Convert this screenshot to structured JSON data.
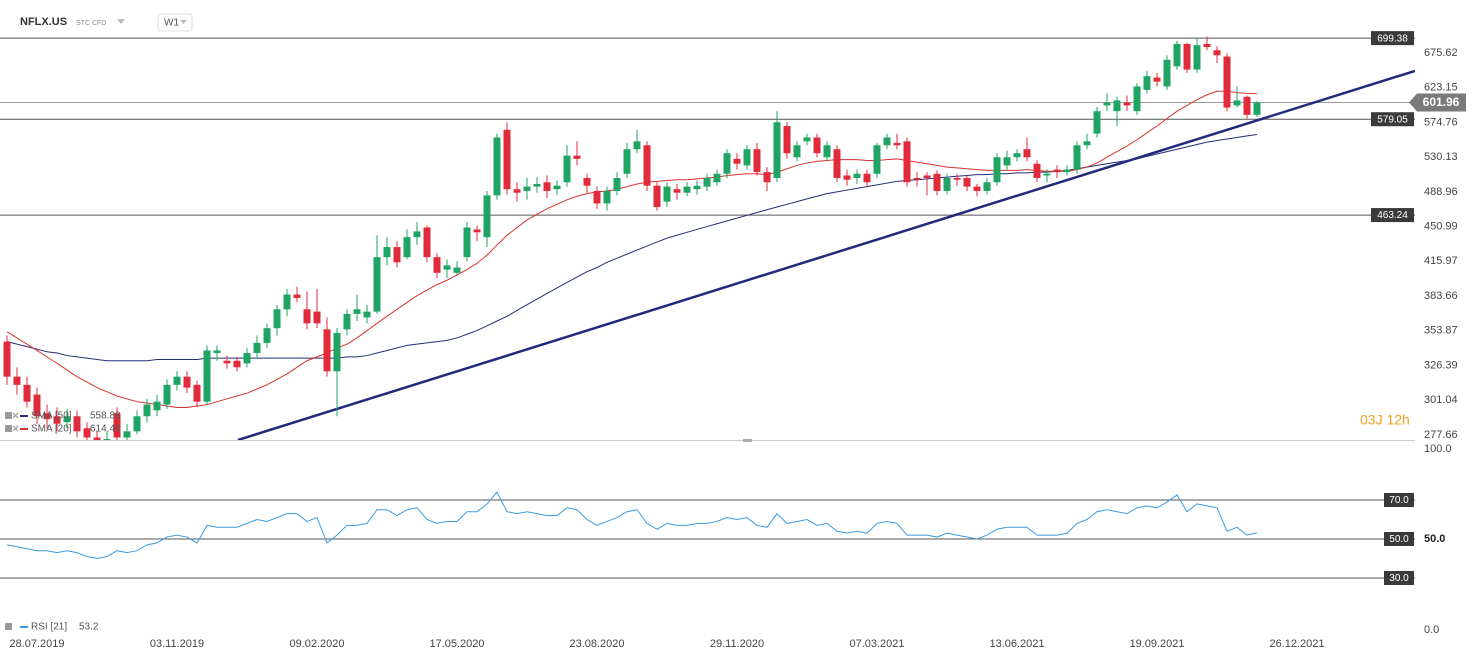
{
  "header": {
    "symbol": "NFLX.US",
    "instrument": "STC CFD",
    "interval": "W1"
  },
  "countdown": "03J 12h",
  "chart_data": [
    {
      "type": "candlestick",
      "log_scale": true,
      "up_color": "#1fa463",
      "down_color": "#e12b3b",
      "ylim": [
        274.4,
        764.3
      ],
      "yticks": [
        675.62,
        623.15,
        574.76,
        530.13,
        488.96,
        450.99,
        415.97,
        383.66,
        353.87,
        326.39,
        301.04,
        277.66
      ],
      "levels": [
        699.38,
        579.05,
        463.24
      ],
      "open": [
        345,
        318,
        312,
        305,
        292,
        290,
        286,
        290,
        282,
        276,
        272,
        292,
        276,
        280,
        290,
        294,
        298,
        312,
        318,
        312,
        300,
        336,
        330,
        330,
        328,
        336,
        344,
        356,
        372,
        385,
        372,
        370,
        355,
        322,
        355,
        368,
        365,
        370,
        420,
        430,
        420,
        440,
        450,
        420,
        408,
        405,
        420,
        448,
        440,
        485,
        565,
        492,
        490,
        495,
        500,
        492,
        500,
        532,
        505,
        490,
        476,
        490,
        510,
        540,
        545,
        496,
        478,
        492,
        488,
        492,
        495,
        500,
        510,
        528,
        520,
        540,
        512,
        505,
        570,
        530,
        550,
        555,
        530,
        540,
        508,
        505,
        510,
        510,
        545,
        548,
        550,
        505,
        508,
        510,
        490,
        505,
        505,
        495,
        490,
        500,
        520,
        530,
        540,
        522,
        508,
        515,
        512,
        515,
        545,
        560,
        598,
        590,
        602,
        590,
        620,
        638,
        625,
        655,
        690,
        650,
        690,
        680,
        670,
        598,
        610,
        585
      ],
      "high": [
        350,
        325,
        318,
        310,
        298,
        296,
        295,
        294,
        286,
        280,
        280,
        296,
        285,
        294,
        302,
        305,
        316,
        322,
        322,
        315,
        342,
        342,
        334,
        333,
        340,
        350,
        360,
        376,
        390,
        392,
        388,
        390,
        365,
        356,
        372,
        385,
        376,
        442,
        440,
        436,
        448,
        456,
        452,
        424,
        418,
        416,
        456,
        452,
        490,
        560,
        575,
        500,
        505,
        506,
        508,
        502,
        545,
        550,
        510,
        495,
        495,
        512,
        548,
        565,
        550,
        500,
        500,
        498,
        500,
        502,
        510,
        515,
        540,
        535,
        545,
        548,
        518,
        590,
        575,
        550,
        560,
        560,
        550,
        545,
        515,
        515,
        515,
        548,
        560,
        560,
        555,
        512,
        512,
        514,
        510,
        510,
        508,
        498,
        505,
        535,
        538,
        540,
        555,
        526,
        515,
        520,
        520,
        550,
        560,
        596,
        615,
        610,
        612,
        630,
        648,
        645,
        672,
        695,
        692,
        700,
        702,
        686,
        675,
        625,
        612,
        604
      ],
      "low": [
        312,
        305,
        296,
        285,
        282,
        280,
        282,
        276,
        270,
        265,
        268,
        272,
        272,
        278,
        286,
        290,
        295,
        308,
        306,
        296,
        298,
        330,
        324,
        322,
        325,
        332,
        340,
        350,
        366,
        378,
        355,
        356,
        318,
        290,
        350,
        362,
        360,
        368,
        412,
        410,
        418,
        432,
        415,
        400,
        400,
        402,
        416,
        436,
        430,
        480,
        486,
        478,
        480,
        488,
        482,
        485,
        495,
        520,
        488,
        470,
        468,
        485,
        505,
        535,
        490,
        468,
        472,
        480,
        484,
        486,
        490,
        496,
        505,
        515,
        515,
        508,
        490,
        500,
        528,
        525,
        545,
        530,
        525,
        500,
        496,
        498,
        495,
        505,
        540,
        540,
        495,
        495,
        485,
        485,
        486,
        496,
        490,
        484,
        486,
        496,
        515,
        525,
        525,
        500,
        500,
        505,
        508,
        510,
        540,
        555,
        590,
        570,
        590,
        585,
        615,
        625,
        620,
        650,
        645,
        645,
        680,
        660,
        590,
        595,
        580,
        582
      ],
      "close": [
        318,
        312,
        300,
        290,
        288,
        285,
        290,
        280,
        276,
        272,
        275,
        276,
        280,
        290,
        298,
        300,
        312,
        318,
        310,
        300,
        338,
        338,
        328,
        325,
        336,
        344,
        356,
        372,
        385,
        382,
        360,
        360,
        322,
        352,
        368,
        372,
        370,
        420,
        430,
        415,
        440,
        446,
        420,
        405,
        412,
        410,
        450,
        445,
        485,
        555,
        492,
        488,
        495,
        498,
        490,
        496,
        532,
        528,
        496,
        476,
        490,
        505,
        540,
        550,
        496,
        472,
        495,
        488,
        495,
        496,
        505,
        510,
        535,
        522,
        540,
        512,
        500,
        575,
        535,
        545,
        555,
        535,
        545,
        505,
        503,
        510,
        500,
        545,
        555,
        545,
        500,
        503,
        505,
        490,
        505,
        503,
        495,
        490,
        500,
        530,
        530,
        535,
        530,
        505,
        510,
        512,
        515,
        545,
        550,
        590,
        602,
        605,
        598,
        625,
        640,
        632,
        665,
        690,
        650,
        688,
        685,
        672,
        595,
        605,
        585,
        601.96
      ],
      "overlays": [
        {
          "name": "SMA [50]",
          "color": "#262e78",
          "values": [
            345,
            343,
            341,
            339,
            337,
            336,
            334,
            333,
            332,
            331,
            330,
            330,
            330,
            330,
            330,
            331,
            331,
            331,
            331,
            331,
            332,
            332,
            332,
            332,
            332,
            332,
            332,
            332,
            332,
            332,
            332,
            332,
            332,
            332,
            333,
            333,
            334,
            336,
            338,
            340,
            342,
            343,
            344,
            345,
            346,
            348,
            351,
            354,
            358,
            362,
            366,
            371,
            376,
            381,
            386,
            391,
            396,
            401,
            406,
            410,
            415,
            419,
            423,
            427,
            431,
            435,
            439,
            442,
            445,
            448,
            451,
            454,
            457,
            460,
            463,
            466,
            469,
            472,
            475,
            478,
            481,
            484,
            487,
            489,
            491,
            493,
            495,
            497,
            499,
            501,
            502,
            503,
            504,
            505,
            506,
            507,
            508,
            509,
            509,
            510,
            510,
            511,
            511,
            512,
            512,
            513,
            514,
            516,
            518,
            520,
            522,
            524,
            526,
            528,
            531,
            534,
            537,
            540,
            543,
            546,
            549,
            551,
            553,
            555,
            557,
            558.88
          ]
        },
        {
          "name": "SMA [20]",
          "color": "#d8332e",
          "values": [
            353,
            348,
            343,
            338,
            333,
            328,
            323,
            318,
            314,
            310,
            307,
            304,
            302,
            300,
            299,
            298,
            297,
            296,
            296,
            297,
            298,
            300,
            302,
            304,
            306,
            309,
            312,
            316,
            320,
            325,
            330,
            333,
            336,
            340,
            343,
            348,
            354,
            360,
            366,
            372,
            378,
            384,
            389,
            394,
            398,
            403,
            408,
            414,
            422,
            432,
            442,
            450,
            458,
            464,
            470,
            475,
            480,
            484,
            487,
            489,
            490,
            492,
            495,
            498,
            500,
            501,
            502,
            503,
            503,
            504,
            505,
            506,
            508,
            509,
            510,
            510,
            509,
            512,
            516,
            520,
            523,
            525,
            526,
            527,
            527,
            527,
            526,
            526,
            527,
            528,
            526,
            524,
            522,
            520,
            518,
            517,
            516,
            515,
            514,
            514,
            514,
            514,
            515,
            514,
            513,
            513,
            513,
            515,
            518,
            523,
            530,
            537,
            544,
            552,
            561,
            570,
            580,
            590,
            598,
            606,
            613,
            618,
            618,
            616,
            615,
            614.46
          ]
        }
      ],
      "trend_line": {
        "color": "#1f2a7a",
        "x": [
          23.1,
          140.8
        ],
        "y": [
          274.4,
          648
        ]
      }
    },
    {
      "type": "line",
      "name": "RSI [21]",
      "color": "#3c9be0",
      "ylim": [
        0,
        100
      ],
      "yticks": [
        {
          "value": 100,
          "label": "100.0"
        },
        {
          "value": 50,
          "label": "50.0"
        },
        {
          "value": 0,
          "label": "0.0"
        }
      ],
      "levels": [
        {
          "value": 70,
          "label": "70.0"
        },
        {
          "value": 50,
          "label": "50.0"
        },
        {
          "value": 30,
          "label": "30.0"
        }
      ],
      "categories": [
        null,
        null,
        null,
        "28.07.2019",
        null,
        null,
        null,
        null,
        null,
        null,
        null,
        null,
        null,
        null,
        null,
        null,
        null,
        "03.11.2019",
        null,
        null,
        null,
        null,
        null,
        null,
        null,
        null,
        null,
        null,
        null,
        null,
        null,
        "09.02.2020",
        null,
        null,
        null,
        null,
        null,
        null,
        null,
        null,
        null,
        null,
        null,
        null,
        null,
        "17.05.2020",
        null,
        null,
        null,
        null,
        null,
        null,
        null,
        null,
        null,
        null,
        null,
        null,
        null,
        "23.08.2020",
        null,
        null,
        null,
        null,
        null,
        null,
        null,
        null,
        null,
        null,
        null,
        null,
        null,
        "29.11.2020",
        null,
        null,
        null,
        null,
        null,
        null,
        null,
        null,
        null,
        null,
        null,
        null,
        null,
        "07.03.2021",
        null,
        null,
        null,
        null,
        null,
        null,
        null,
        null,
        null,
        null,
        null,
        null,
        null,
        "13.06.2021",
        null,
        null,
        null,
        null,
        null,
        null,
        null,
        null,
        null,
        null,
        null,
        null,
        null,
        "19.09.2021",
        null,
        null,
        null,
        null,
        null,
        null,
        null,
        null,
        null,
        null,
        null,
        null,
        null,
        "26.12.2021"
      ],
      "values": [
        47,
        46,
        45,
        44,
        44,
        43,
        44,
        43,
        41,
        40,
        41,
        44,
        43,
        44,
        47,
        48,
        51,
        52,
        51,
        48,
        57,
        56,
        56,
        56,
        58,
        60,
        59,
        61,
        63,
        63,
        59,
        61,
        48,
        52,
        57,
        57,
        58,
        65,
        65,
        62,
        65,
        66,
        60,
        58,
        59,
        59,
        64,
        64,
        68,
        74,
        64,
        63,
        64,
        63,
        62,
        62,
        66,
        65,
        60,
        57,
        59,
        61,
        64,
        65,
        58,
        55,
        58,
        57,
        57,
        58,
        58,
        59,
        61,
        60,
        61,
        57,
        56,
        63,
        58,
        59,
        60,
        57,
        58,
        54,
        53,
        54,
        53,
        58,
        59,
        58,
        52,
        52,
        52,
        51,
        53,
        52,
        51,
        50,
        52,
        55,
        56,
        56,
        56,
        52,
        52,
        52,
        53,
        58,
        60,
        64,
        65,
        64,
        63,
        66,
        67,
        66,
        69,
        72.6,
        64,
        68,
        67,
        66,
        54,
        56,
        52,
        53.2,
        null,
        null,
        null,
        null
      ]
    }
  ]
}
